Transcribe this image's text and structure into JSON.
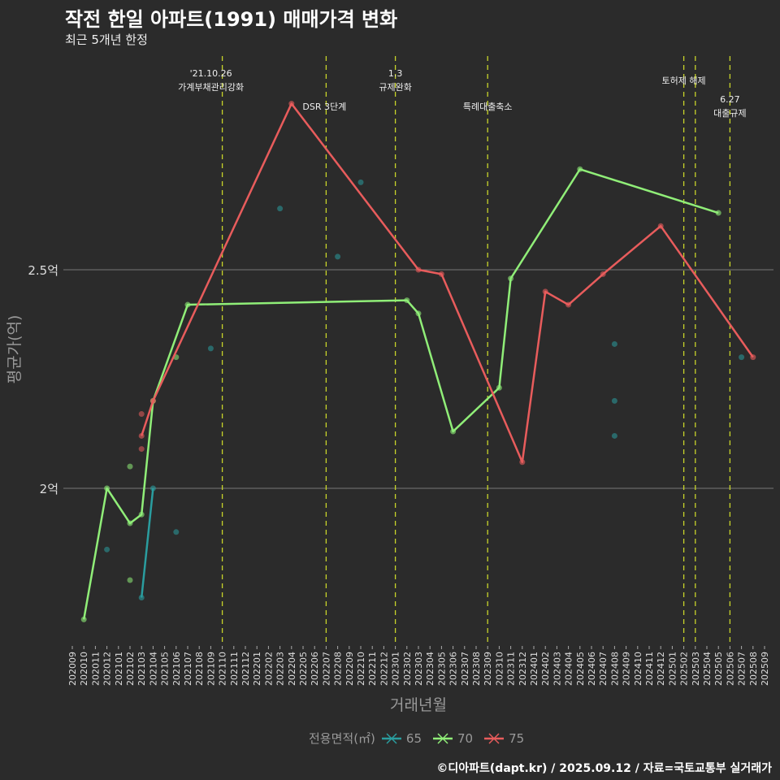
{
  "chart_data": {
    "type": "line",
    "title": "작전 한일 아파트(1991) 매매가격 변화",
    "subtitle": "최근 5개년 한정",
    "xlabel": "거래년월",
    "ylabel": "평균가(억)",
    "ylim": [
      1.65,
      3.0
    ],
    "yticks": [
      {
        "value": 2.0,
        "label": "2억"
      },
      {
        "value": 2.5,
        "label": "2.5억"
      }
    ],
    "categories": [
      "202009",
      "202010",
      "202011",
      "202012",
      "202101",
      "202102",
      "202103",
      "202104",
      "202105",
      "202106",
      "202107",
      "202108",
      "202109",
      "202110",
      "202111",
      "202112",
      "202201",
      "202202",
      "202203",
      "202204",
      "202205",
      "202206",
      "202207",
      "202208",
      "202209",
      "202210",
      "202211",
      "202212",
      "202301",
      "202302",
      "202303",
      "202304",
      "202305",
      "202306",
      "202307",
      "202308",
      "202309",
      "202310",
      "202311",
      "202312",
      "202401",
      "202402",
      "202403",
      "202404",
      "202405",
      "202406",
      "202407",
      "202408",
      "202409",
      "202410",
      "202411",
      "202412",
      "202501",
      "202502",
      "202503",
      "202504",
      "202505",
      "202506",
      "202507",
      "202508",
      "202509"
    ],
    "legend": {
      "title": "전용면적(㎡)",
      "placement": "bottom"
    },
    "series": [
      {
        "name": "65",
        "color": "#2a9d9f",
        "line": [
          [
            "202103",
            1.75
          ],
          [
            "202104",
            2.0
          ]
        ],
        "points": [
          [
            "202012",
            1.86
          ],
          [
            "202106",
            1.9
          ],
          [
            "202109",
            2.32
          ],
          [
            "202203",
            2.64
          ],
          [
            "202208",
            2.53
          ],
          [
            "202210",
            2.7
          ],
          [
            "202408",
            2.33
          ],
          [
            "202408",
            2.2
          ],
          [
            "202408",
            2.12
          ],
          [
            "202507",
            2.3
          ]
        ]
      },
      {
        "name": "70",
        "color": "#90ee78",
        "line": [
          [
            "202010",
            1.7
          ],
          [
            "202012",
            2.0
          ],
          [
            "202102",
            1.92
          ],
          [
            "202103",
            1.94
          ],
          [
            "202104",
            2.2
          ],
          [
            "202107",
            2.42
          ],
          [
            "202302",
            2.43
          ],
          [
            "202303",
            2.4
          ],
          [
            "202306",
            2.13
          ],
          [
            "202310",
            2.23
          ],
          [
            "202311",
            2.48
          ],
          [
            "202405",
            2.73
          ],
          [
            "202505",
            2.63
          ]
        ],
        "points": [
          [
            "202102",
            2.05
          ],
          [
            "202102",
            1.79
          ],
          [
            "202106",
            2.3
          ]
        ]
      },
      {
        "name": "75",
        "color": "#e85c5c",
        "line": [
          [
            "202103",
            2.12
          ],
          [
            "202104",
            2.2
          ],
          [
            "202204",
            2.88
          ],
          [
            "202303",
            2.5
          ],
          [
            "202305",
            2.49
          ],
          [
            "202312",
            2.06
          ],
          [
            "202402",
            2.45
          ],
          [
            "202404",
            2.42
          ],
          [
            "202407",
            2.49
          ],
          [
            "202412",
            2.6
          ],
          [
            "202508",
            2.3
          ]
        ],
        "points": [
          [
            "202103",
            2.17
          ],
          [
            "202103",
            2.09
          ]
        ]
      }
    ],
    "annotations": [
      {
        "month": "202110",
        "lines": [
          "'21.10.26",
          "가계부채관리강화"
        ]
      },
      {
        "month": "202207",
        "lines": [
          "DSR 3단계"
        ]
      },
      {
        "month": "202301",
        "lines": [
          "1.3",
          "규제완화"
        ]
      },
      {
        "month": "202309",
        "lines": [
          "특례대출축소"
        ]
      },
      {
        "month": "202502",
        "lines": [
          "토허제 해제"
        ]
      },
      {
        "month": "202503",
        "lines": []
      },
      {
        "month": "202506",
        "lines": [
          "6.27",
          "대출규제"
        ]
      }
    ]
  },
  "caption": "©디아파트(dapt.kr) / 2025.09.12 / 자료=국토교통부 실거래가"
}
